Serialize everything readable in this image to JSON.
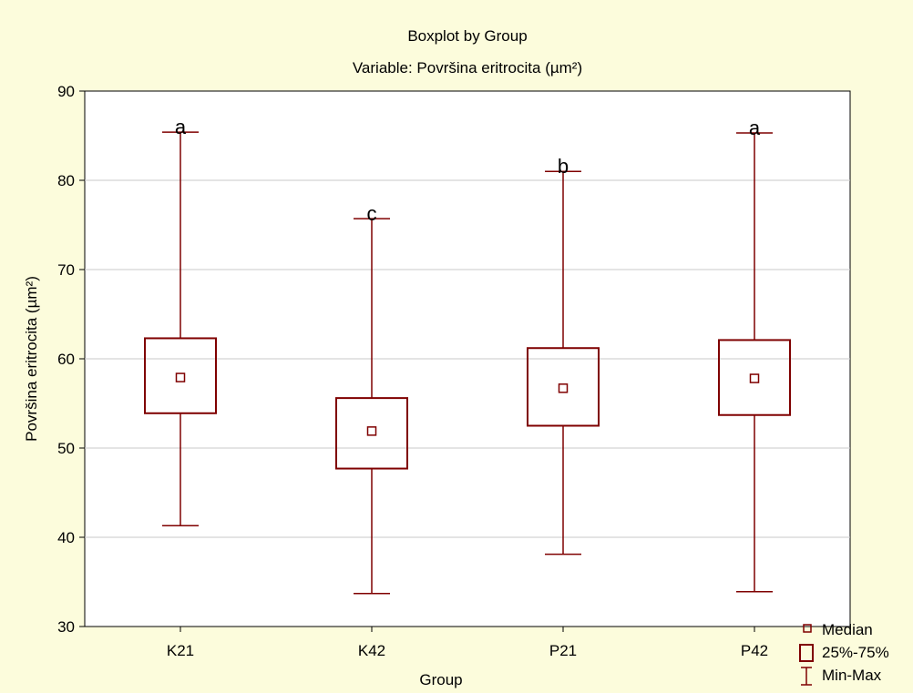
{
  "chart_data": {
    "type": "boxplot",
    "title": "Boxplot by Group",
    "subtitle": "Variable: Površina eritrocita  (µm²)",
    "xlabel": "Group",
    "ylabel": "Površina eritrocita  (µm²)",
    "ylim": [
      30,
      90
    ],
    "yticks": [
      30,
      40,
      50,
      60,
      70,
      80,
      90
    ],
    "grid": true,
    "categories": [
      "K21",
      "K42",
      "P21",
      "P42"
    ],
    "boxes": [
      {
        "category": "K21",
        "min": 41.3,
        "q1": 53.9,
        "median": 57.9,
        "q3": 62.3,
        "max": 85.4,
        "letter": "a"
      },
      {
        "category": "K42",
        "min": 33.7,
        "q1": 47.7,
        "median": 51.9,
        "q3": 55.6,
        "max": 75.7,
        "letter": "c"
      },
      {
        "category": "P21",
        "min": 38.1,
        "q1": 52.5,
        "median": 56.7,
        "q3": 61.2,
        "max": 81.0,
        "letter": "b"
      },
      {
        "category": "P42",
        "min": 33.9,
        "q1": 53.7,
        "median": 57.8,
        "q3": 62.1,
        "max": 85.3,
        "letter": "a"
      }
    ],
    "legend": {
      "position": "bottom-right",
      "items": [
        "Median",
        "25%-75%",
        "Min-Max"
      ]
    },
    "colors": {
      "box": "#7f0000",
      "grid": "#c8c8c8",
      "background": "#fcfcdc",
      "plot_background": "#ffffff"
    }
  }
}
